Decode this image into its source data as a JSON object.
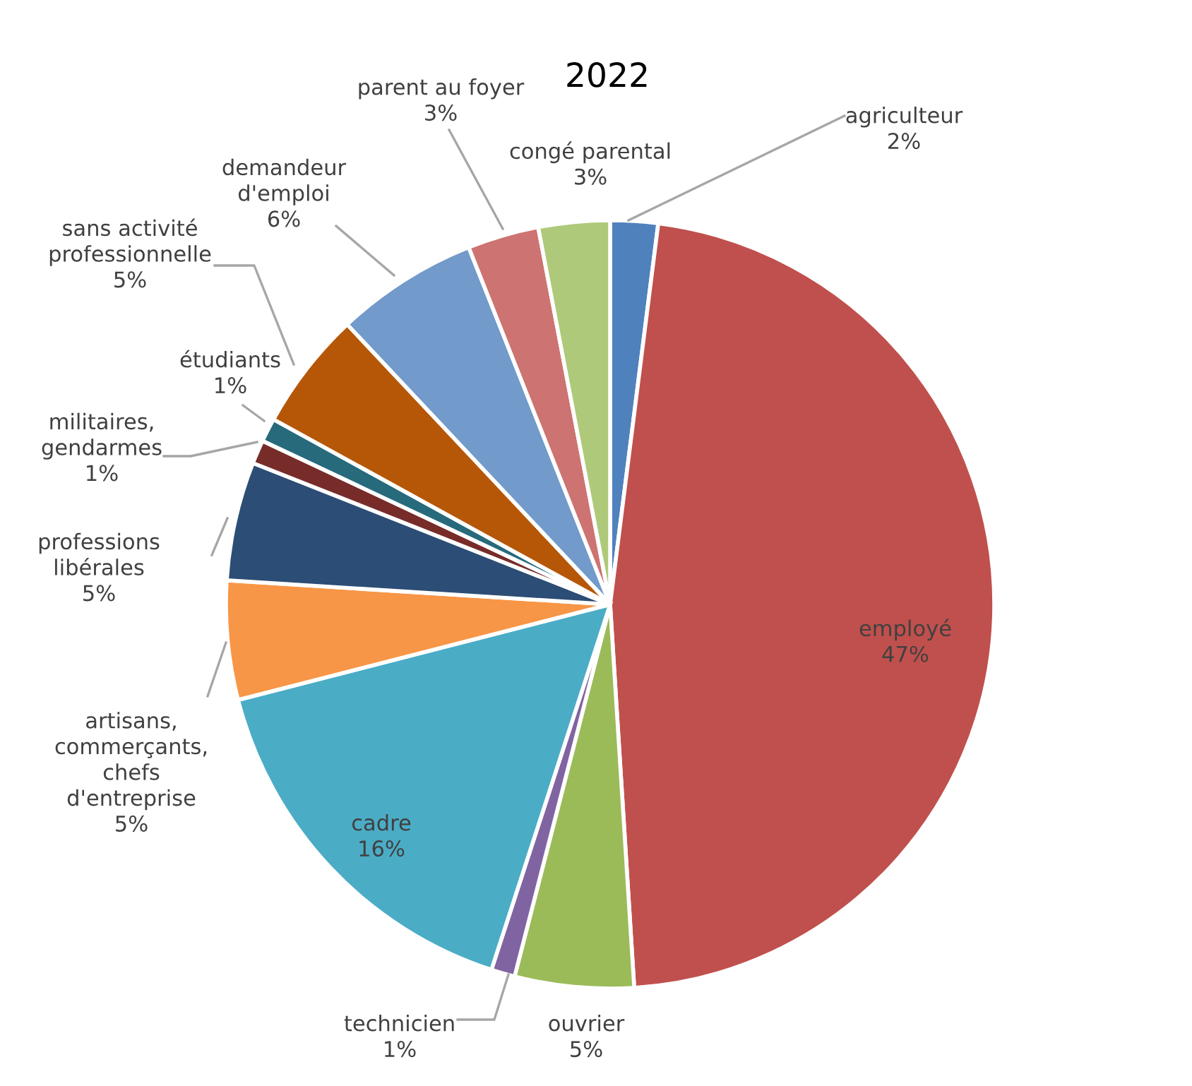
{
  "chart_data": {
    "type": "pie",
    "title": "2022",
    "categories": [
      "agriculteur",
      "employé",
      "ouvrier",
      "technicien",
      "cadre",
      "artisans,\ncommerçants,\nchefs\nd'entreprise",
      "professions\nlibérales",
      "militaires,\ngendarmes",
      "étudiants",
      "sans activité\nprofessionnelle",
      "demandeur\nd'emploi",
      "parent au foyer",
      "congé parental"
    ],
    "values": [
      2,
      47,
      5,
      1,
      16,
      5,
      5,
      1,
      1,
      5,
      6,
      3,
      3
    ],
    "value_labels": [
      "2%",
      "47%",
      "5%",
      "1%",
      "16%",
      "5%",
      "5%",
      "1%",
      "1%",
      "5%",
      "6%",
      "3%",
      "3%"
    ],
    "colors": [
      "#4f81bd",
      "#c0504d",
      "#9bbb59",
      "#8064a2",
      "#4bacc6",
      "#f79646",
      "#2c4d75",
      "#772c2a",
      "#276a7c",
      "#b65708",
      "#729aca",
      "#cd7371",
      "#afc97a"
    ],
    "legend": false
  }
}
